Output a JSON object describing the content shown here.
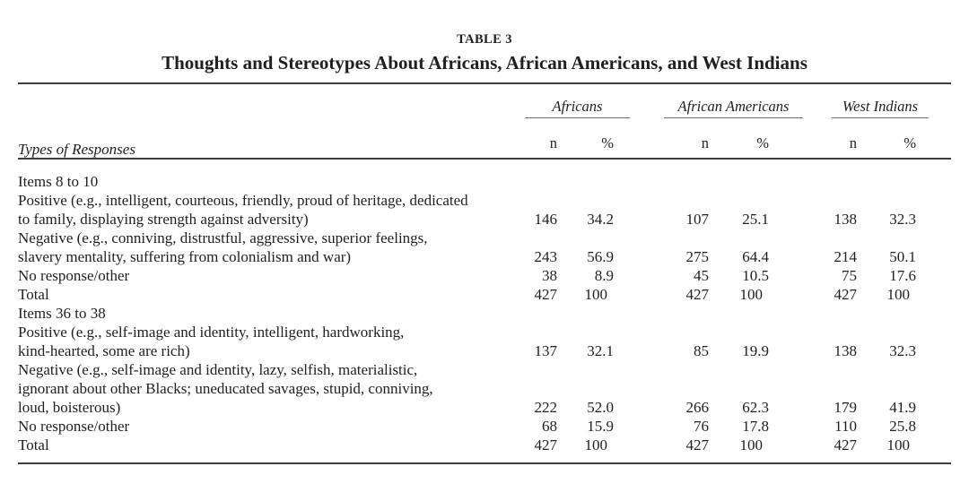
{
  "table": {
    "caption_label": "TABLE 3",
    "title": "Thoughts and Stereotypes About Africans, African Americans, and West Indians",
    "stub_header": "Types of Responses",
    "groups": [
      {
        "label": "Africans"
      },
      {
        "label": "African Americans"
      },
      {
        "label": "West Indians"
      }
    ],
    "subheaders": [
      "n",
      "%"
    ],
    "sections": [
      {
        "header": "Items 8 to 10",
        "rows": [
          {
            "label_lines": [
              "Positive (e.g., intelligent, courteous, friendly, proud of heritage, dedicated",
              "to family, displaying strength against adversity)"
            ],
            "values": [
              "146",
              "34.2",
              "107",
              "25.1",
              "138",
              "32.3"
            ]
          },
          {
            "label_lines": [
              "Negative (e.g., conniving, distrustful, aggressive, superior feelings,",
              "slavery mentality, suffering from colonialism and war)"
            ],
            "values": [
              "243",
              "56.9",
              "275",
              "64.4",
              "214",
              "50.1"
            ]
          },
          {
            "label_lines": [
              "No response/other"
            ],
            "values": [
              "38",
              "8.9",
              "45",
              "10.5",
              "75",
              "17.6"
            ]
          },
          {
            "label_lines": [
              "Total"
            ],
            "values": [
              "427",
              "100",
              "427",
              "100",
              "427",
              "100"
            ]
          }
        ]
      },
      {
        "header": "Items 36 to 38",
        "rows": [
          {
            "label_lines": [
              "Positive (e.g., self-image and identity, intelligent, hardworking,",
              "kind-hearted, some are rich)"
            ],
            "values": [
              "137",
              "32.1",
              "85",
              "19.9",
              "138",
              "32.3"
            ]
          },
          {
            "label_lines": [
              "Negative (e.g., self-image and identity, lazy, selfish, materialistic,",
              "ignorant about other Blacks; uneducated savages, stupid, conniving,",
              "loud, boisterous)"
            ],
            "values": [
              "222",
              "52.0",
              "266",
              "62.3",
              "179",
              "41.9"
            ]
          },
          {
            "label_lines": [
              "No response/other"
            ],
            "values": [
              "68",
              "15.9",
              "76",
              "17.8",
              "110",
              "25.8"
            ]
          },
          {
            "label_lines": [
              "Total"
            ],
            "values": [
              "427",
              "100",
              "427",
              "100",
              "427",
              "100"
            ]
          }
        ]
      }
    ],
    "colors": {
      "rule_heavy": "#3d3d3d",
      "rule_light": "#6f6f6f",
      "text": "#1f1f1f"
    }
  }
}
